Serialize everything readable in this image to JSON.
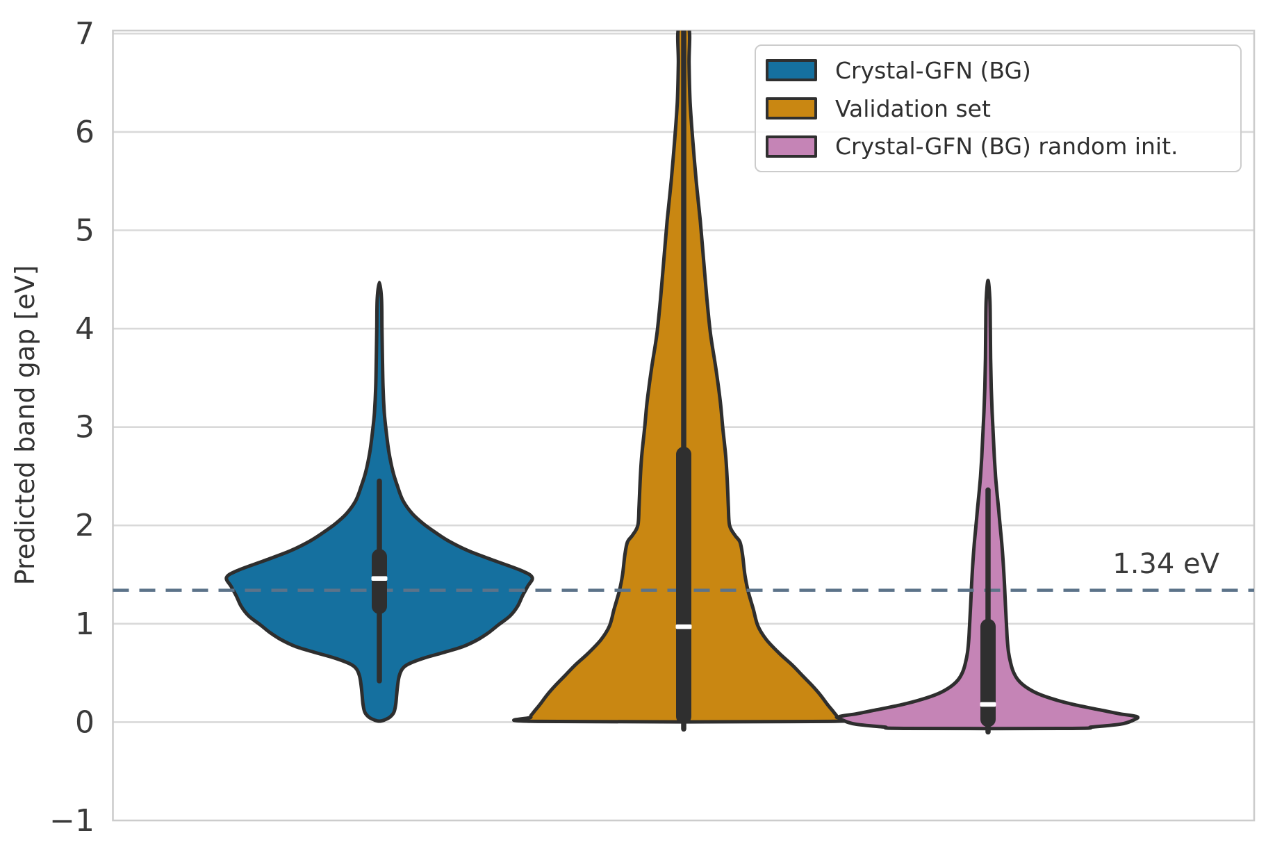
{
  "chart_data": {
    "type": "violin",
    "title": "",
    "xlabel": "",
    "ylabel": "Predicted band gap [eV]",
    "ylim": [
      -1.04,
      7.04
    ],
    "y_ticks": [
      7,
      6,
      5,
      4,
      3,
      2,
      1,
      0,
      -1
    ],
    "grid": "horizontal",
    "legend_position": "upper right",
    "reference_line": {
      "value": 1.34,
      "label": "1.34 eV",
      "style": "dashed",
      "color": "#5c7389"
    },
    "categories": [
      "Crystal-GFN (BG)",
      "Validation set",
      "Crystal-GFN (BG) random init."
    ],
    "series": [
      {
        "name": "Crystal-GFN (BG)",
        "color": "#15709f",
        "position": 0,
        "flat_bottom": false,
        "stats": {
          "median": 1.46,
          "q1": 1.1,
          "q3": 1.76,
          "whisker_low": 0.42,
          "whisker_high": 2.45,
          "kde_min": 0.01,
          "kde_max": 4.47
        },
        "profile": [
          [
            4.47,
            0.0
          ],
          [
            4.3,
            0.014
          ],
          [
            4.0,
            0.017
          ],
          [
            3.7,
            0.02
          ],
          [
            3.4,
            0.024
          ],
          [
            3.15,
            0.032
          ],
          [
            2.95,
            0.045
          ],
          [
            2.75,
            0.062
          ],
          [
            2.55,
            0.088
          ],
          [
            2.4,
            0.118
          ],
          [
            2.25,
            0.155
          ],
          [
            2.12,
            0.215
          ],
          [
            2.02,
            0.285
          ],
          [
            1.93,
            0.365
          ],
          [
            1.84,
            0.455
          ],
          [
            1.74,
            0.585
          ],
          [
            1.64,
            0.755
          ],
          [
            1.54,
            0.93
          ],
          [
            1.47,
            1.0
          ],
          [
            1.38,
            0.97
          ],
          [
            1.28,
            0.935
          ],
          [
            1.18,
            0.905
          ],
          [
            1.08,
            0.855
          ],
          [
            0.99,
            0.78
          ],
          [
            0.91,
            0.715
          ],
          [
            0.84,
            0.645
          ],
          [
            0.77,
            0.55
          ],
          [
            0.71,
            0.425
          ],
          [
            0.65,
            0.29
          ],
          [
            0.59,
            0.19
          ],
          [
            0.54,
            0.15
          ],
          [
            0.47,
            0.13
          ],
          [
            0.38,
            0.12
          ],
          [
            0.28,
            0.113
          ],
          [
            0.18,
            0.107
          ],
          [
            0.1,
            0.095
          ],
          [
            0.05,
            0.068
          ],
          [
            0.02,
            0.03
          ],
          [
            0.01,
            0.0
          ]
        ]
      },
      {
        "name": "Validation set",
        "color": "#c98712",
        "position": 1,
        "flat_bottom": true,
        "stats": {
          "median": 0.97,
          "q1": -0.02,
          "q3": 2.8,
          "whisker_low": -0.07,
          "whisker_high": 7.05,
          "kde_min": 0.005,
          "kde_max": 7.05
        },
        "profile": [
          [
            7.05,
            0.034
          ],
          [
            6.7,
            0.035
          ],
          [
            6.3,
            0.042
          ],
          [
            5.9,
            0.06
          ],
          [
            5.5,
            0.082
          ],
          [
            5.1,
            0.108
          ],
          [
            4.7,
            0.13
          ],
          [
            4.3,
            0.152
          ],
          [
            3.95,
            0.175
          ],
          [
            3.6,
            0.21
          ],
          [
            3.25,
            0.24
          ],
          [
            3.0,
            0.255
          ],
          [
            2.7,
            0.275
          ],
          [
            2.45,
            0.285
          ],
          [
            2.2,
            0.292
          ],
          [
            2.0,
            0.3
          ],
          [
            1.9,
            0.335
          ],
          [
            1.83,
            0.368
          ],
          [
            1.7,
            0.385
          ],
          [
            1.5,
            0.4
          ],
          [
            1.34,
            0.42
          ],
          [
            1.15,
            0.455
          ],
          [
            0.98,
            0.485
          ],
          [
            0.84,
            0.54
          ],
          [
            0.7,
            0.625
          ],
          [
            0.58,
            0.71
          ],
          [
            0.48,
            0.772
          ],
          [
            0.38,
            0.835
          ],
          [
            0.28,
            0.892
          ],
          [
            0.18,
            0.94
          ],
          [
            0.1,
            0.982
          ],
          [
            0.05,
            1.0
          ],
          [
            0.007,
            0.955
          ]
        ]
      },
      {
        "name": "Crystal-GFN (BG) random init.",
        "color": "#c584b6",
        "position": 2,
        "flat_bottom": true,
        "stats": {
          "median": 0.18,
          "q1": -0.05,
          "q3": 1.05,
          "whisker_low": -0.1,
          "whisker_high": 2.36,
          "kde_min": -0.064,
          "kde_max": 4.49
        },
        "profile": [
          [
            4.49,
            0.0
          ],
          [
            4.3,
            0.012
          ],
          [
            4.0,
            0.015
          ],
          [
            3.7,
            0.017
          ],
          [
            3.4,
            0.021
          ],
          [
            3.15,
            0.027
          ],
          [
            2.92,
            0.034
          ],
          [
            2.7,
            0.041
          ],
          [
            2.5,
            0.049
          ],
          [
            2.36,
            0.057
          ],
          [
            2.15,
            0.07
          ],
          [
            1.98,
            0.08
          ],
          [
            1.78,
            0.092
          ],
          [
            1.58,
            0.101
          ],
          [
            1.38,
            0.108
          ],
          [
            1.18,
            0.114
          ],
          [
            0.98,
            0.121
          ],
          [
            0.84,
            0.126
          ],
          [
            0.71,
            0.134
          ],
          [
            0.6,
            0.148
          ],
          [
            0.51,
            0.166
          ],
          [
            0.43,
            0.196
          ],
          [
            0.36,
            0.245
          ],
          [
            0.29,
            0.325
          ],
          [
            0.23,
            0.435
          ],
          [
            0.175,
            0.57
          ],
          [
            0.125,
            0.73
          ],
          [
            0.085,
            0.86
          ],
          [
            0.055,
            0.975
          ],
          [
            0.02,
            0.95
          ],
          [
            -0.02,
            0.87
          ],
          [
            -0.05,
            0.68
          ],
          [
            -0.064,
            0.55
          ]
        ]
      }
    ],
    "style": {
      "violin_edge_color": "#2e2e2e",
      "box_color": "#2f2f2f",
      "median_color": "#ffffff",
      "grid_color": "#d9d9d9",
      "spine_color": "#cccccc",
      "tick_label_color": "#3a3a3a"
    }
  }
}
